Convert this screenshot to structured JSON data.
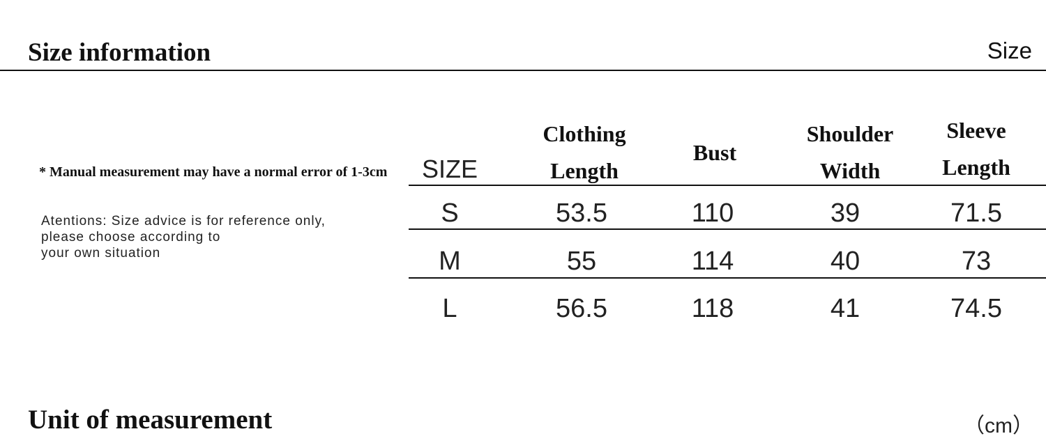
{
  "header": {
    "title": "Size information",
    "right_label": "Size"
  },
  "notes": {
    "disclaimer": "* Manual measurement may have a normal error of 1-3cm",
    "attention_lines": [
      "Atentions: Size advice is for reference only,",
      "please choose according to",
      "your own situation"
    ]
  },
  "table": {
    "columns": [
      {
        "lines": [
          "SIZE"
        ]
      },
      {
        "lines": [
          "Clothing",
          "Length"
        ]
      },
      {
        "lines": [
          "Bust"
        ]
      },
      {
        "lines": [
          "Shoulder",
          "Width"
        ]
      },
      {
        "lines": [
          "Sleeve",
          "Length"
        ]
      }
    ],
    "rows": [
      [
        "S",
        "53.5",
        "110",
        "39",
        "71.5"
      ],
      [
        "M",
        "55",
        "114",
        "40",
        "73"
      ],
      [
        "L",
        "56.5",
        "118",
        "41",
        "74.5"
      ]
    ]
  },
  "footer": {
    "title": "Unit of measurement",
    "unit": "（cm）"
  }
}
